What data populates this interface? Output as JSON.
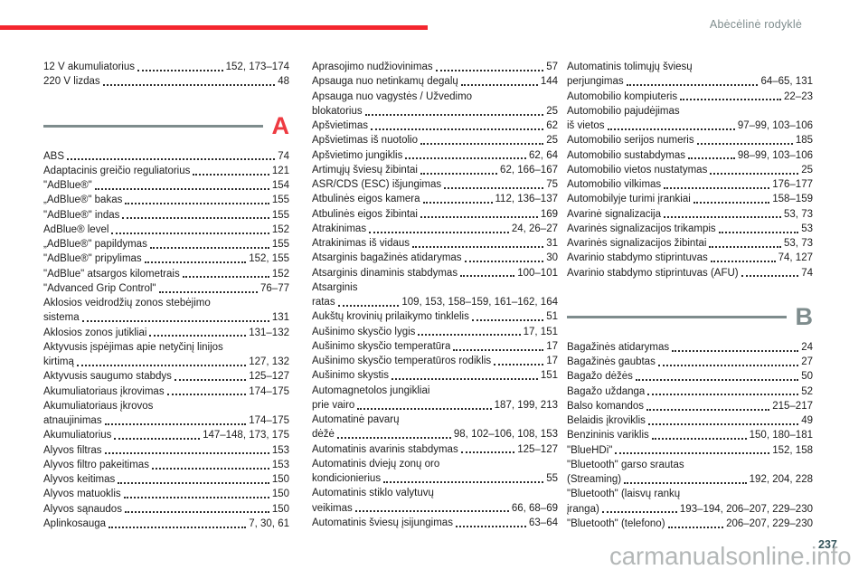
{
  "page": {
    "header": "Abėcėlinė rodyklė",
    "page_number": "237",
    "watermark": "carmanualsonline.info"
  },
  "colors": {
    "accent_red": "#f4262e",
    "divider_gray": "#7e8c8d",
    "header_text": "#7e8c8d",
    "section_a_letter": "#ee3a41",
    "section_b_letter": "#7e8c8d",
    "body_text": "#1c1c1c",
    "watermark_gray": "#a8adad",
    "page_number_color": "#35555c"
  },
  "columns": [
    {
      "blocks": [
        {
          "type": "entries",
          "items": [
            {
              "label": "12 V akumuliatorius",
              "pages": "152, 173–174"
            },
            {
              "label": "220 V lizdas",
              "pages": "48"
            }
          ]
        },
        {
          "type": "section",
          "letter": "A",
          "color": "#ee3a41"
        },
        {
          "type": "entries",
          "items": [
            {
              "label": "ABS",
              "pages": "74"
            },
            {
              "label": "Adaptacinis greičio reguliatorius",
              "pages": "121"
            },
            {
              "label": "\"AdBlue®\"",
              "pages": "154"
            },
            {
              "label": "„AdBlue®\" bakas",
              "pages": "155"
            },
            {
              "label": "\"AdBlue®\" indas",
              "pages": "155"
            },
            {
              "label": "AdBlue® level",
              "pages": "152"
            },
            {
              "label": "„AdBlue®\" papildymas",
              "pages": "155"
            },
            {
              "label": "\"AdBlue®\" pripylimas",
              "pages": "152, 155"
            },
            {
              "label": "\"AdBlue\" atsargos kilometrais",
              "pages": "152"
            },
            {
              "label": "\"Advanced Grip Control\"",
              "pages": "76–77"
            },
            {
              "label": "Aklosios veidrodžių zonos stebėjimo",
              "pages": ""
            },
            {
              "label": "sistema",
              "pages": "131"
            },
            {
              "label": "Aklosios zonos jutikliai",
              "pages": "131–132"
            },
            {
              "label": "Aktyvusis įspėjimas apie netyčinį linijos",
              "pages": ""
            },
            {
              "label": "kirtimą",
              "pages": "127, 132"
            },
            {
              "label": "Aktyvusis saugumo stabdys",
              "pages": "125–127"
            },
            {
              "label": "Akumuliatoriaus įkrovimas",
              "pages": "174–175"
            },
            {
              "label": "Akumuliatoriaus įkrovos",
              "pages": ""
            },
            {
              "label": "atnaujinimas",
              "pages": "174–175"
            },
            {
              "label": "Akumuliatorius",
              "pages": "147–148, 173, 175"
            },
            {
              "label": "Alyvos filtras",
              "pages": "153"
            },
            {
              "label": "Alyvos filtro pakeitimas",
              "pages": "153"
            },
            {
              "label": "Alyvos keitimas",
              "pages": "150"
            },
            {
              "label": "Alyvos matuoklis",
              "pages": "150"
            },
            {
              "label": "Alyvos sąnaudos",
              "pages": "150"
            },
            {
              "label": "Aplinkosauga",
              "pages": "7, 30, 61"
            }
          ]
        }
      ]
    },
    {
      "blocks": [
        {
          "type": "entries",
          "items": [
            {
              "label": "Aprasojimo nudžiovinimas",
              "pages": "57"
            },
            {
              "label": "Apsauga nuo netinkamų degalų",
              "pages": "144"
            },
            {
              "label": "Apsauga nuo vagystės / Užvedimo",
              "pages": ""
            },
            {
              "label": "blokatorius",
              "pages": "25"
            },
            {
              "label": "Apšvietimas",
              "pages": "62"
            },
            {
              "label": "Apšvietimas iš nuotolio",
              "pages": "25"
            },
            {
              "label": "Apšvietimo jungiklis",
              "pages": "62, 64"
            },
            {
              "label": "Artimųjų šviesų žibintai",
              "pages": "62, 166–167"
            },
            {
              "label": "ASR/CDS (ESC) išjungimas",
              "pages": "75"
            },
            {
              "label": "Atbulinės eigos kamera",
              "pages": "112, 136–137"
            },
            {
              "label": "Atbulinės eigos žibintai",
              "pages": "169"
            },
            {
              "label": "Atrakinimas",
              "pages": "24, 26–27"
            },
            {
              "label": "Atrakinimas iš vidaus",
              "pages": "31"
            },
            {
              "label": "Atsarginis bagažinės atidarymas",
              "pages": "30"
            },
            {
              "label": "Atsarginis dinaminis stabdymas",
              "pages": "100–101"
            },
            {
              "label": "Atsarginis",
              "pages": ""
            },
            {
              "label": "ratas",
              "pages": "109, 153, 158–159, 161–162, 164"
            },
            {
              "label": "Aukštų krovinių prilaikymo tinklelis",
              "pages": "51"
            },
            {
              "label": "Aušinimo skysčio lygis",
              "pages": "17, 151"
            },
            {
              "label": "Aušinimo skysčio temperatūra",
              "pages": "17"
            },
            {
              "label": "Aušinimo skysčio temperatūros rodiklis",
              "pages": "17"
            },
            {
              "label": "Aušinimo skystis",
              "pages": "151"
            },
            {
              "label": "Automagnetolos jungikliai",
              "pages": ""
            },
            {
              "label": "prie vairo",
              "pages": "187, 199, 213"
            },
            {
              "label": "Automatinė pavarų",
              "pages": ""
            },
            {
              "label": "dėžė",
              "pages": "98, 102–106, 108, 153"
            },
            {
              "label": "Automatinis avarinis stabdymas",
              "pages": "125–127"
            },
            {
              "label": "Automatinis dviejų zonų oro",
              "pages": ""
            },
            {
              "label": "kondicionierius",
              "pages": "55"
            },
            {
              "label": "Automatinis stiklo valytuvų",
              "pages": ""
            },
            {
              "label": "veikimas",
              "pages": "66, 68–69"
            },
            {
              "label": "Automatinis šviesų įsijungimas",
              "pages": "63–64"
            }
          ]
        }
      ]
    },
    {
      "blocks": [
        {
          "type": "entries",
          "items": [
            {
              "label": "Automatinis tolimųjų šviesų",
              "pages": ""
            },
            {
              "label": "perjungimas",
              "pages": "64–65, 131"
            },
            {
              "label": "Automobilio kompiuteris",
              "pages": "22–23"
            },
            {
              "label": "Automobilio pajudėjimas",
              "pages": ""
            },
            {
              "label": "iš vietos",
              "pages": "97–99, 103–106"
            },
            {
              "label": "Automobilio serijos numeris",
              "pages": "185"
            },
            {
              "label": "Automobilio sustabdymas",
              "pages": "98–99, 103–106"
            },
            {
              "label": "Automobilio vietos nustatymas",
              "pages": "25"
            },
            {
              "label": "Automobilio vilkimas",
              "pages": "176–177"
            },
            {
              "label": "Automobilyje turimi įrankiai",
              "pages": "158–159"
            },
            {
              "label": "Avarinė signalizacija",
              "pages": "53, 73"
            },
            {
              "label": "Avarinės signalizacijos trikampis",
              "pages": "53"
            },
            {
              "label": "Avarinės signalizacijos žibintai",
              "pages": "53, 73"
            },
            {
              "label": "Avarinio stabdymo stiprintuvas",
              "pages": "74, 127"
            },
            {
              "label": "Avarinio stabdymo stiprintuvas (AFU)",
              "pages": "74"
            }
          ]
        },
        {
          "type": "section",
          "letter": "B",
          "color": "#7e8c8d"
        },
        {
          "type": "entries",
          "items": [
            {
              "label": "Bagažinės atidarymas",
              "pages": "24"
            },
            {
              "label": "Bagažinės gaubtas",
              "pages": "27"
            },
            {
              "label": "Bagažo dėžės",
              "pages": "50"
            },
            {
              "label": "Bagažo uždanga",
              "pages": "52"
            },
            {
              "label": "Balso komandos",
              "pages": "215–217"
            },
            {
              "label": "Belaidis įkroviklis",
              "pages": "49"
            },
            {
              "label": "Benzininis variklis",
              "pages": "150, 180–181"
            },
            {
              "label": "\"BlueHDi\"",
              "pages": "152, 158"
            },
            {
              "label": "\"Bluetooth\" garso srautas",
              "pages": ""
            },
            {
              "label": "(Streaming)",
              "pages": "192, 204, 228"
            },
            {
              "label": "\"Bluetooth\" (laisvų rankų",
              "pages": ""
            },
            {
              "label": "įranga)",
              "pages": "193–194, 206–207, 229–230"
            },
            {
              "label": "\"Bluetooth\" (telefono)",
              "pages": "206–207, 229–230"
            }
          ]
        }
      ]
    }
  ]
}
